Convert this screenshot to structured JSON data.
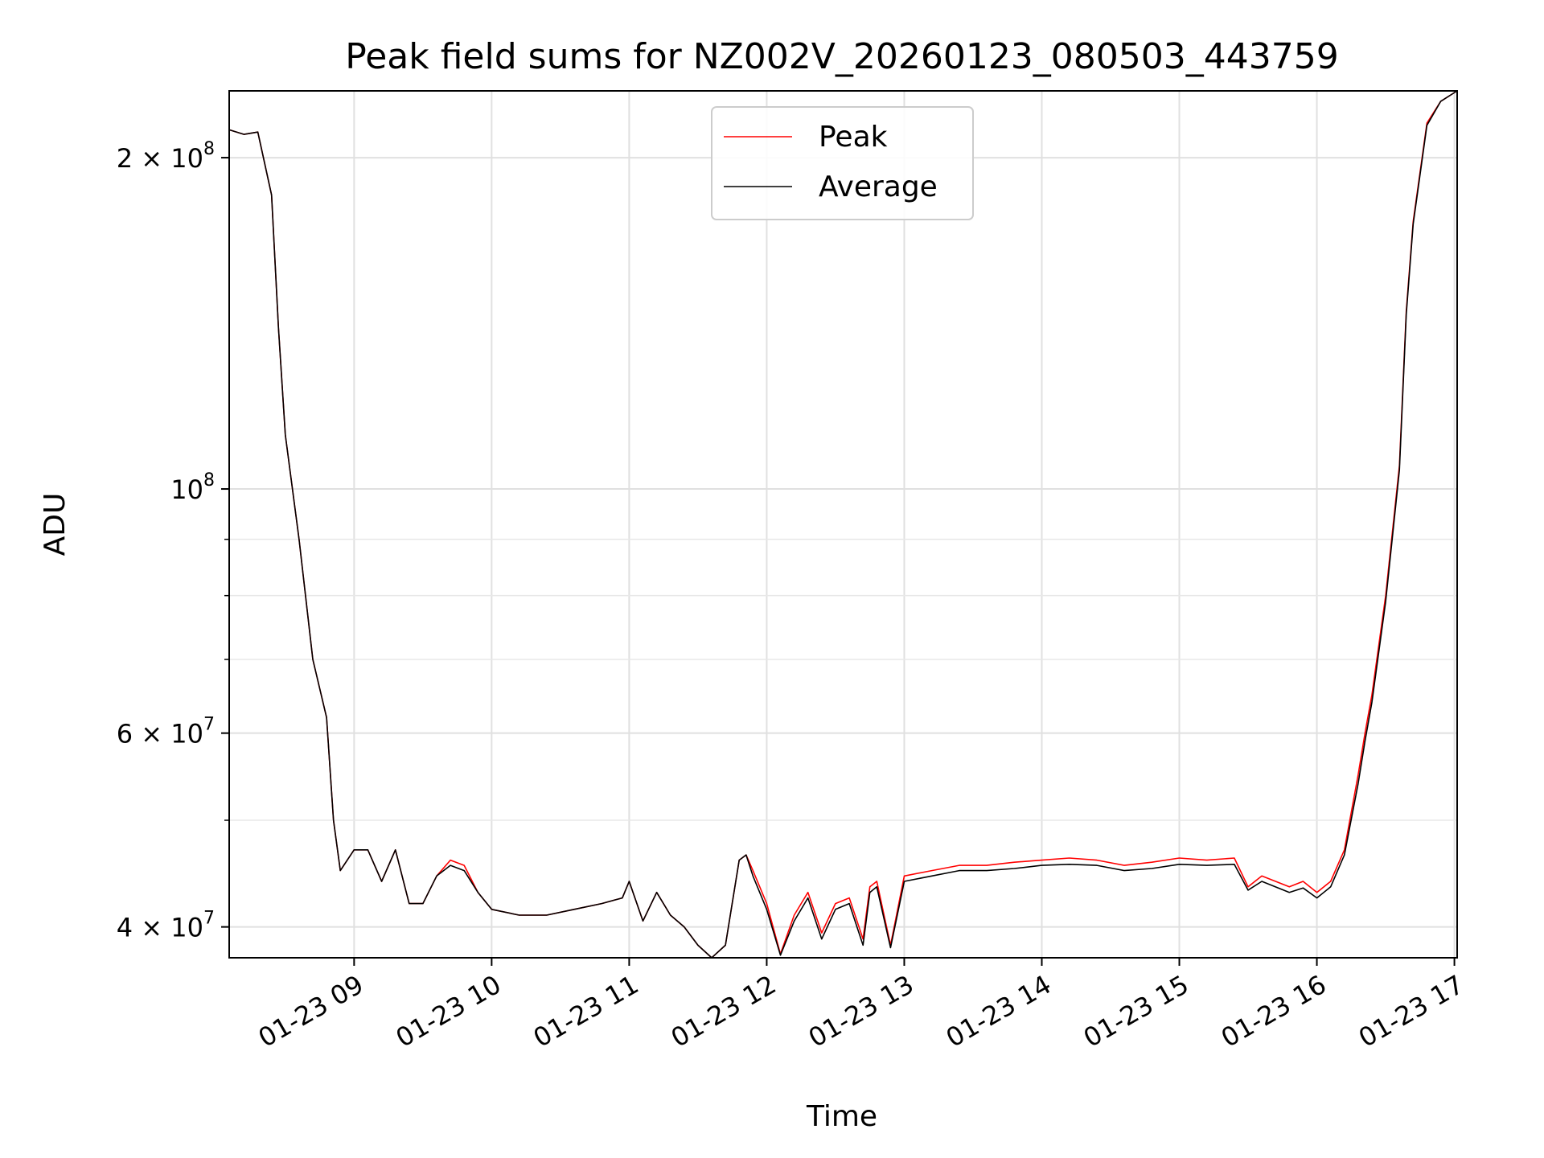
{
  "chart_data": {
    "type": "line",
    "title": "Peak field sums for NZ002V_20260123_080503_443759",
    "xlabel": "Time",
    "ylabel": "ADU",
    "yscale": "log",
    "ylim": [
      37500000,
      230000000
    ],
    "xlim_hours": [
      8.0917,
      17.02
    ],
    "grid": true,
    "legend_position": "top-center",
    "x_ticks": [
      {
        "value": 9,
        "label": "01-23 09"
      },
      {
        "value": 10,
        "label": "01-23 10"
      },
      {
        "value": 11,
        "label": "01-23 11"
      },
      {
        "value": 12,
        "label": "01-23 12"
      },
      {
        "value": 13,
        "label": "01-23 13"
      },
      {
        "value": 14,
        "label": "01-23 14"
      },
      {
        "value": 15,
        "label": "01-23 15"
      },
      {
        "value": 16,
        "label": "01-23 16"
      },
      {
        "value": 17,
        "label": "01-23 17"
      }
    ],
    "y_major_ticks": [
      {
        "value": 40000000,
        "mantissa": "4",
        "exp": "7"
      },
      {
        "value": 60000000,
        "mantissa": "6",
        "exp": "7"
      },
      {
        "value": 100000000,
        "mantissa": "",
        "exp": "8"
      },
      {
        "value": 200000000,
        "mantissa": "2",
        "exp": "8"
      }
    ],
    "y_minor_ticks": [
      50000000,
      70000000,
      80000000,
      90000000
    ],
    "x_hours": [
      8.0917,
      8.2,
      8.3,
      8.4,
      8.45,
      8.5,
      8.6,
      8.7,
      8.8,
      8.85,
      8.9,
      9.0,
      9.1,
      9.2,
      9.3,
      9.4,
      9.5,
      9.6,
      9.7,
      9.8,
      9.9,
      10.0,
      10.2,
      10.4,
      10.6,
      10.8,
      10.95,
      11.0,
      11.1,
      11.2,
      11.3,
      11.4,
      11.5,
      11.6,
      11.7,
      11.8,
      11.85,
      11.9,
      12.0,
      12.1,
      12.2,
      12.3,
      12.4,
      12.5,
      12.6,
      12.7,
      12.75,
      12.8,
      12.9,
      13.0,
      13.2,
      13.4,
      13.6,
      13.8,
      14.0,
      14.2,
      14.4,
      14.6,
      14.8,
      15.0,
      15.2,
      15.4,
      15.5,
      15.6,
      15.8,
      15.9,
      16.0,
      16.1,
      16.2,
      16.3,
      16.35,
      16.4,
      16.5,
      16.6,
      16.65,
      16.7,
      16.8,
      16.9,
      17.02
    ],
    "series": [
      {
        "name": "Peak",
        "color": "#ff0000",
        "values": [
          212000000,
          210000000,
          211000000,
          185000000,
          140000000,
          112000000,
          90000000,
          70000000,
          62000000,
          50000000,
          45000000,
          47000000,
          47000000,
          44000000,
          47000000,
          42000000,
          42000000,
          44500000,
          46000000,
          45500000,
          43000000,
          41500000,
          41000000,
          41000000,
          41500000,
          42000000,
          42500000,
          44000000,
          40500000,
          43000000,
          41000000,
          40000000,
          38500000,
          37500000,
          38500000,
          46000000,
          46500000,
          45000000,
          42000000,
          37800000,
          41000000,
          43000000,
          39500000,
          42000000,
          42500000,
          39000000,
          43500000,
          44000000,
          38500000,
          44500000,
          45000000,
          45500000,
          45500000,
          45800000,
          46000000,
          46200000,
          46000000,
          45500000,
          45800000,
          46200000,
          46000000,
          46200000,
          43500000,
          44500000,
          43500000,
          44000000,
          43000000,
          44000000,
          47000000,
          55000000,
          60000000,
          65000000,
          80000000,
          105000000,
          145000000,
          175000000,
          215000000,
          225000000,
          230000000
        ]
      },
      {
        "name": "Average",
        "color": "#000000",
        "values": [
          212000000,
          210000000,
          211000000,
          185000000,
          140000000,
          112000000,
          90000000,
          70000000,
          62000000,
          50000000,
          45000000,
          47000000,
          47000000,
          44000000,
          47000000,
          42000000,
          42000000,
          44500000,
          45500000,
          45000000,
          43000000,
          41500000,
          41000000,
          41000000,
          41500000,
          42000000,
          42500000,
          44000000,
          40500000,
          43000000,
          41000000,
          40000000,
          38500000,
          37500000,
          38500000,
          46000000,
          46500000,
          44500000,
          41500000,
          37700000,
          40500000,
          42500000,
          39000000,
          41500000,
          42000000,
          38500000,
          43000000,
          43500000,
          38300000,
          44000000,
          44500000,
          45000000,
          45000000,
          45200000,
          45500000,
          45600000,
          45500000,
          45000000,
          45200000,
          45600000,
          45500000,
          45600000,
          43200000,
          44000000,
          43000000,
          43400000,
          42500000,
          43500000,
          46500000,
          54000000,
          59000000,
          64000000,
          79000000,
          104000000,
          144000000,
          174000000,
          214000000,
          225000000,
          230000000
        ]
      }
    ],
    "legend": [
      {
        "label": "Peak",
        "color": "#ff0000"
      },
      {
        "label": "Average",
        "color": "#000000"
      }
    ]
  }
}
